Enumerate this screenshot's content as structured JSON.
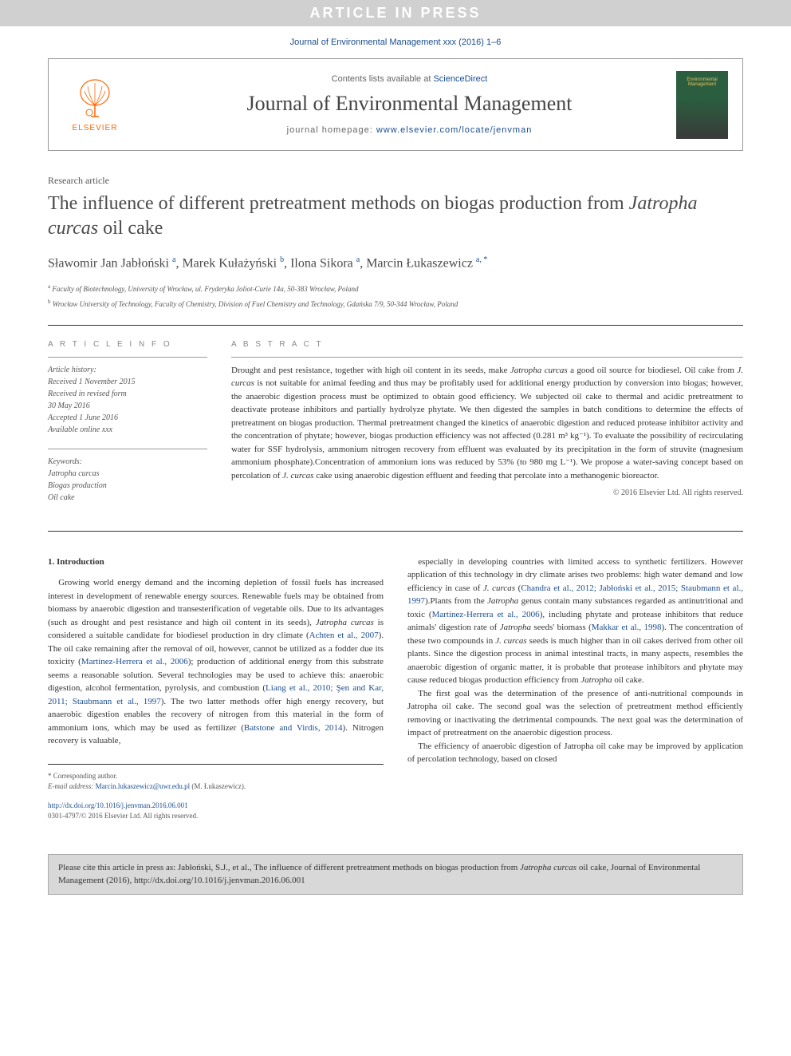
{
  "banner": "ARTICLE IN PRESS",
  "journal_ref": "Journal of Environmental Management xxx (2016) 1–6",
  "header": {
    "contents_prefix": "Contents lists available at ",
    "contents_link": "ScienceDirect",
    "journal_title": "Journal of Environmental Management",
    "homepage_prefix": "journal homepage: ",
    "homepage_link": "www.elsevier.com/locate/jenvman",
    "elsevier_label": "ELSEVIER",
    "cover_text": "Environmental Management"
  },
  "article": {
    "type": "Research article",
    "title_pre": "The influence of different pretreatment methods on biogas production from ",
    "title_species": "Jatropha curcas",
    "title_post": " oil cake",
    "authors_html": "Sławomir Jan Jabłoński <sup>a</sup>, Marek Kułażyński <sup>b</sup>, Ilona Sikora <sup>a</sup>, Marcin Łukaszewicz <sup>a, *</sup>",
    "affiliations": [
      "a Faculty of Biotechnology, University of Wrocław, ul. Fryderyka Joliot-Curie 14a, 50-383 Wrocław, Poland",
      "b Wrocław University of Technology, Faculty of Chemistry, Division of Fuel Chemistry and Technology, Gdańska 7/9, 50-344 Wrocław, Poland"
    ]
  },
  "info": {
    "heading": "A R T I C L E   I N F O",
    "history_label": "Article history:",
    "history": [
      "Received 1 November 2015",
      "Received in revised form",
      "30 May 2016",
      "Accepted 1 June 2016",
      "Available online xxx"
    ],
    "keywords_label": "Keywords:",
    "keywords": [
      "Jatropha curcas",
      "Biogas production",
      "Oil cake"
    ]
  },
  "abstract": {
    "heading": "A B S T R A C T",
    "text": "Drought and pest resistance, together with high oil content in its seeds, make <span class=\"species\">Jatropha curcas</span> a good oil source for biodiesel. Oil cake from <span class=\"species\">J. curcas</span> is not suitable for animal feeding and thus may be profitably used for additional energy production by conversion into biogas; however, the anaerobic digestion process must be optimized to obtain good efficiency. We subjected oil cake to thermal and acidic pretreatment to deactivate protease inhibitors and partially hydrolyze phytate. We then digested the samples in batch conditions to determine the effects of pretreatment on biogas production. Thermal pretreatment changed the kinetics of anaerobic digestion and reduced protease inhibitor activity and the concentration of phytate; however, biogas production efficiency was not affected (0.281 m³ kg⁻¹). To evaluate the possibility of recirculating water for SSF hydrolysis, ammonium nitrogen recovery from effluent was evaluated by its precipitation in the form of struvite (magnesium ammonium phosphate).Concentration of ammonium ions was reduced by 53% (to 980 mg L⁻¹). We propose a water-saving concept based on percolation of <span class=\"species\">J. curcas</span> cake using anaerobic digestion effluent and feeding that percolate into a methanogenic bioreactor.",
    "copyright": "© 2016 Elsevier Ltd. All rights reserved."
  },
  "body": {
    "section_heading": "1. Introduction",
    "col1_p1": "Growing world energy demand and the incoming depletion of fossil fuels has increased interest in development of renewable energy sources. Renewable fuels may be obtained from biomass by anaerobic digestion and transesterification of vegetable oils. Due to its advantages (such as drought and pest resistance and high oil content in its seeds), <span class=\"species\">Jatropha curcas</span> is considered a suitable candidate for biodiesel production in dry climate (<span class=\"ref\">Achten et al., 2007</span>). The oil cake remaining after the removal of oil, however, cannot be utilized as a fodder due its toxicity (<span class=\"ref\">Martínez-Herrera et al., 2006</span>); production of additional energy from this substrate seems a reasonable solution. Several technologies may be used to achieve this: anaerobic digestion, alcohol fermentation, pyrolysis, and combustion (<span class=\"ref\">Liang et al., 2010; Şen and Kar, 2011; Staubmann et al., 1997</span>). The two latter methods offer high energy recovery, but anaerobic digestion enables the recovery of nitrogen from this material in the form of ammonium ions, which may be used as fertilizer (<span class=\"ref\">Batstone and Virdis, 2014</span>). Nitrogen recovery is valuable,",
    "col2_p1": "especially in developing countries with limited access to synthetic fertilizers. However application of this technology in dry climate arises two problems: high water demand and low efficiency in case of <span class=\"species\">J. curcas</span> (<span class=\"ref\">Chandra et al., 2012; Jabłoński et al., 2015; Staubmann et al., 1997</span>).Plants from the <span class=\"species\">Jatropha</span> genus contain many substances regarded as antinutritional and toxic (<span class=\"ref\">Martínez-Herrera et al., 2006</span>), including phytate and protease inhibitors that reduce animals' digestion rate of <span class=\"species\">Jatropha</span> seeds' biomass (<span class=\"ref\">Makkar et al., 1998</span>). The concentration of these two compounds in <span class=\"species\">J. curcas</span> seeds is much higher than in oil cakes derived from other oil plants. Since the digestion process in animal intestinal tracts, in many aspects, resembles the anaerobic digestion of organic matter, it is probable that protease inhibitors and phytate may cause reduced biogas production efficiency from <span class=\"species\">Jatropha</span> oil cake.",
    "col2_p2": "The first goal was the determination of the presence of anti-nutritional compounds in Jatropha oil cake. The second goal was the selection of pretreatment method efficiently removing or inactivating the detrimental compounds. The next goal was the determination of impact of pretreatment on the anaerobic digestion process.",
    "col2_p3": "The efficiency of anaerobic digestion of Jatropha oil cake may be improved by application of percolation technology, based on closed"
  },
  "footer": {
    "corresponding": "* Corresponding author.",
    "email_label": "E-mail address:",
    "email": "Marcin.lukaszewicz@uwr.edu.pl",
    "email_suffix": "(M. Łukaszewicz).",
    "doi_link": "http://dx.doi.org/10.1016/j.jenvman.2016.06.001",
    "issn_line": "0301-4797/© 2016 Elsevier Ltd. All rights reserved."
  },
  "cite_box": {
    "text": "Please cite this article in press as: Jabłoński, S.J., et al., The influence of different pretreatment methods on biogas production from <span class=\"species\">Jatropha curcas</span> oil cake, Journal of Environmental Management (2016), http://dx.doi.org/10.1016/j.jenvman.2016.06.001"
  },
  "colors": {
    "banner_bg": "#d0d0d0",
    "link": "#1a4d8f",
    "elsevier_orange": "#ff6600",
    "text": "#333333",
    "heading_gray": "#888888",
    "cite_bg": "#d8d8d8"
  }
}
